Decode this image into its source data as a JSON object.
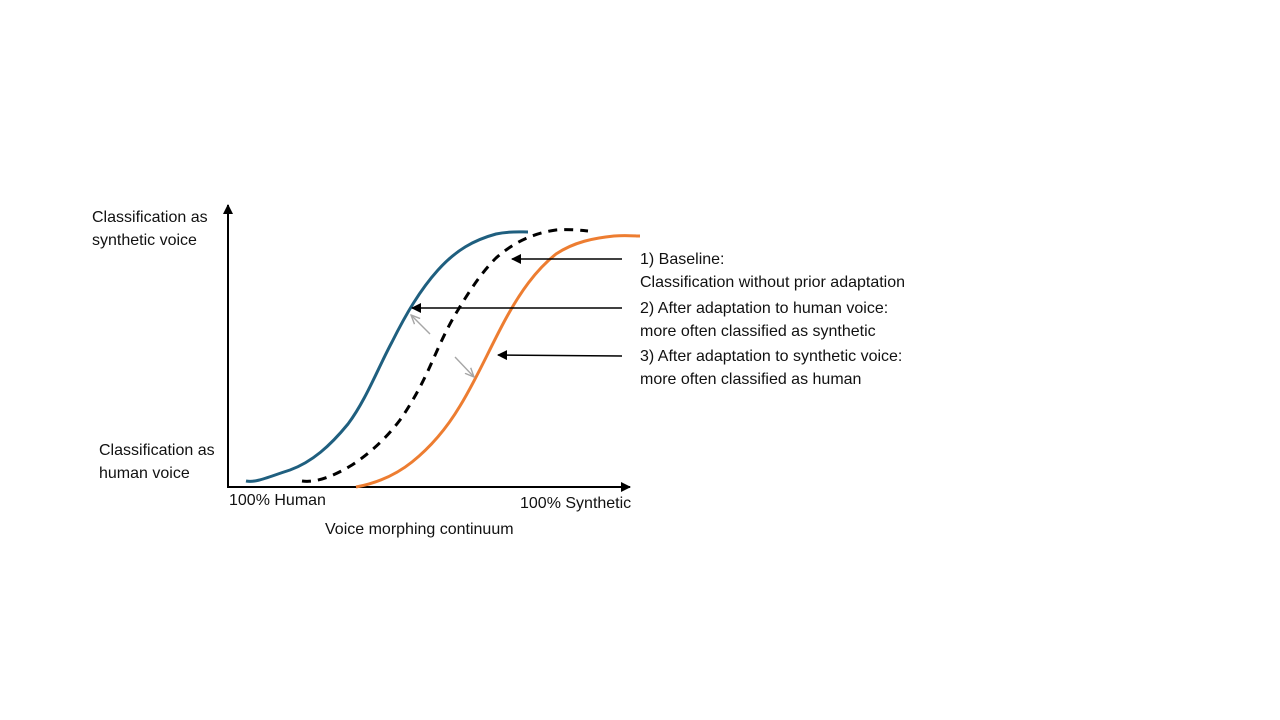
{
  "diagram": {
    "y_axis": {
      "top_label": [
        "Classification as",
        "synthetic voice"
      ],
      "bottom_label": [
        "Classification as",
        "human voice"
      ]
    },
    "x_axis": {
      "left_label": "100% Human",
      "right_label": "100% Synthetic",
      "title": "Voice morphing continuum"
    },
    "annotations": [
      {
        "lines": [
          "1) Baseline:",
          "Classification without prior adaptation"
        ],
        "target": "baseline-curve"
      },
      {
        "lines": [
          "2) After adaptation to human voice:",
          "more often classified as synthetic"
        ],
        "target": "human-adapted-curve"
      },
      {
        "lines": [
          "3) After adaptation to synthetic voice:",
          "more often classified as human"
        ],
        "target": "synthetic-adapted-curve"
      }
    ],
    "curves": [
      {
        "id": "human-adapted-curve",
        "style": "solid",
        "color": "#1f5f7f"
      },
      {
        "id": "baseline-curve",
        "style": "dashed",
        "color": "#000000"
      },
      {
        "id": "synthetic-adapted-curve",
        "style": "solid",
        "color": "#ed7d31"
      }
    ],
    "shift_arrows_color": "#a6a6a6"
  }
}
